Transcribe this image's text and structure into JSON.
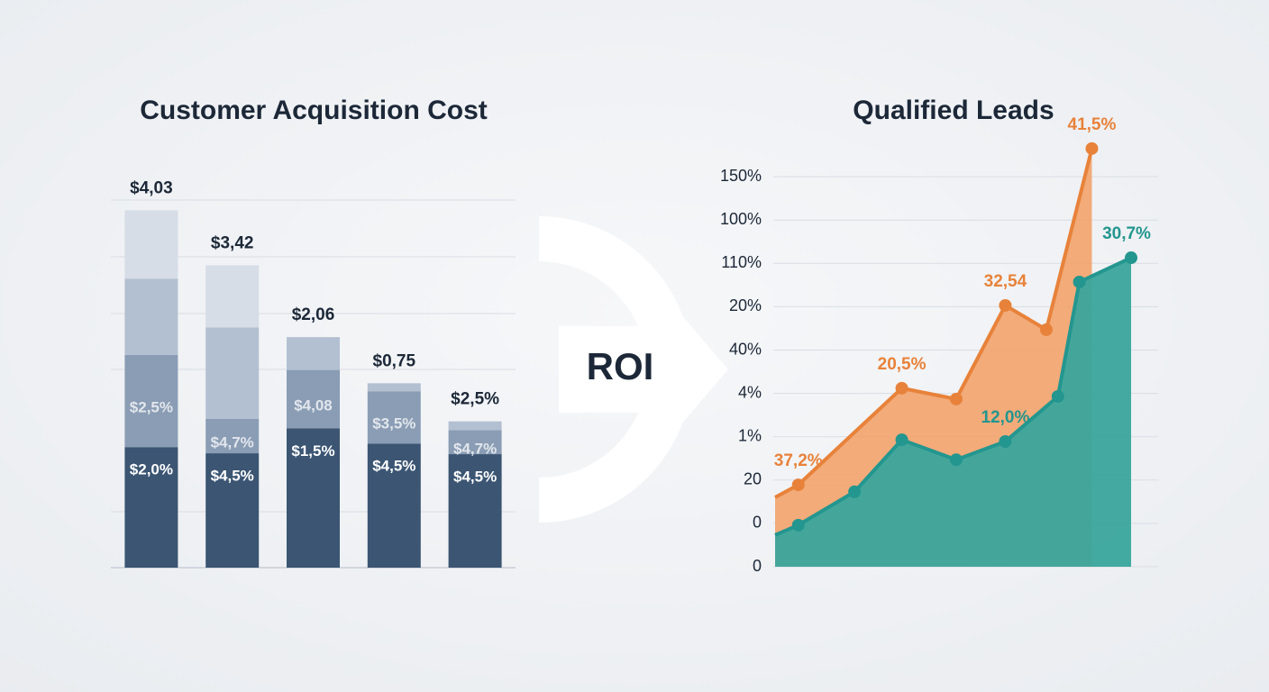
{
  "chart_data": [
    {
      "type": "stacked_bar",
      "title": "Customer Acquisition Cost",
      "categories": [
        null,
        null,
        null,
        null,
        null
      ],
      "ylim": [
        0,
        4.37
      ],
      "bar_labels": [
        "$4,03",
        "$3,42",
        "$2,06",
        "$0,75",
        "$2,5%"
      ],
      "series": [
        {
          "color": "#3b5573",
          "values": [
            1.36,
            1.29,
            1.57,
            1.4,
            1.28
          ],
          "labels": [
            "$2,0%",
            "$4,5%",
            "$1,5%",
            "$4,5%",
            "$4,5%"
          ]
        },
        {
          "color": "#8a9db5",
          "values": [
            1.04,
            0.39,
            0.66,
            0.59,
            0.27
          ],
          "labels": [
            "$2,5%",
            "$4,7%",
            "$4,08",
            "$3,5%",
            "$4,7%"
          ]
        },
        {
          "color": "#b3c0d1",
          "values": [
            0.86,
            1.03,
            0.37,
            0.09,
            0.1
          ],
          "labels": [
            null,
            null,
            null,
            null,
            null
          ]
        },
        {
          "color": "#d6dde7",
          "values": [
            0.77,
            0.7,
            0,
            0,
            0
          ],
          "labels": [
            null,
            null,
            null,
            null,
            null
          ]
        }
      ]
    },
    {
      "type": "area_line",
      "title": "Qualified Leads",
      "xlim": [
        0,
        40
      ],
      "ylim": [
        0,
        10
      ],
      "yticks": [
        0,
        {
          "value": 1,
          "label": "0"
        },
        {
          "value": 2,
          "label": "20"
        },
        {
          "value": 3,
          "label": "1%"
        },
        {
          "value": 4,
          "label": "4%"
        },
        {
          "value": 5,
          "label": "40%"
        },
        {
          "value": 6,
          "label": "20%"
        },
        {
          "value": 7,
          "label": "110%"
        },
        {
          "value": 8,
          "label": "100%"
        },
        {
          "value": 9,
          "label": "150%"
        }
      ],
      "grid": true,
      "series": [
        {
          "color": "#e8823a",
          "area_color": "#f2a36b",
          "x": [
            0,
            2.6,
            14.2,
            20.3,
            25.8,
            30.4,
            35.5
          ],
          "values": [
            1.6,
            1.89,
            4.12,
            3.87,
            6.03,
            5.47,
            9.65
          ],
          "labels": [
            null,
            "37,2%",
            "20,5%",
            null,
            "32,54",
            null,
            "41,5%"
          ]
        },
        {
          "color": "#23968f",
          "area_color": "#3aa59c",
          "x": [
            0,
            2.6,
            8.9,
            14.2,
            20.3,
            25.8,
            31.7,
            34.1,
            39.9
          ],
          "values": [
            0.73,
            0.96,
            1.73,
            2.93,
            2.47,
            2.89,
            3.93,
            6.57,
            7.13
          ],
          "labels": [
            null,
            null,
            null,
            null,
            null,
            "12,0%",
            null,
            null,
            "30,7%"
          ]
        }
      ]
    }
  ],
  "center_label": "ROI"
}
